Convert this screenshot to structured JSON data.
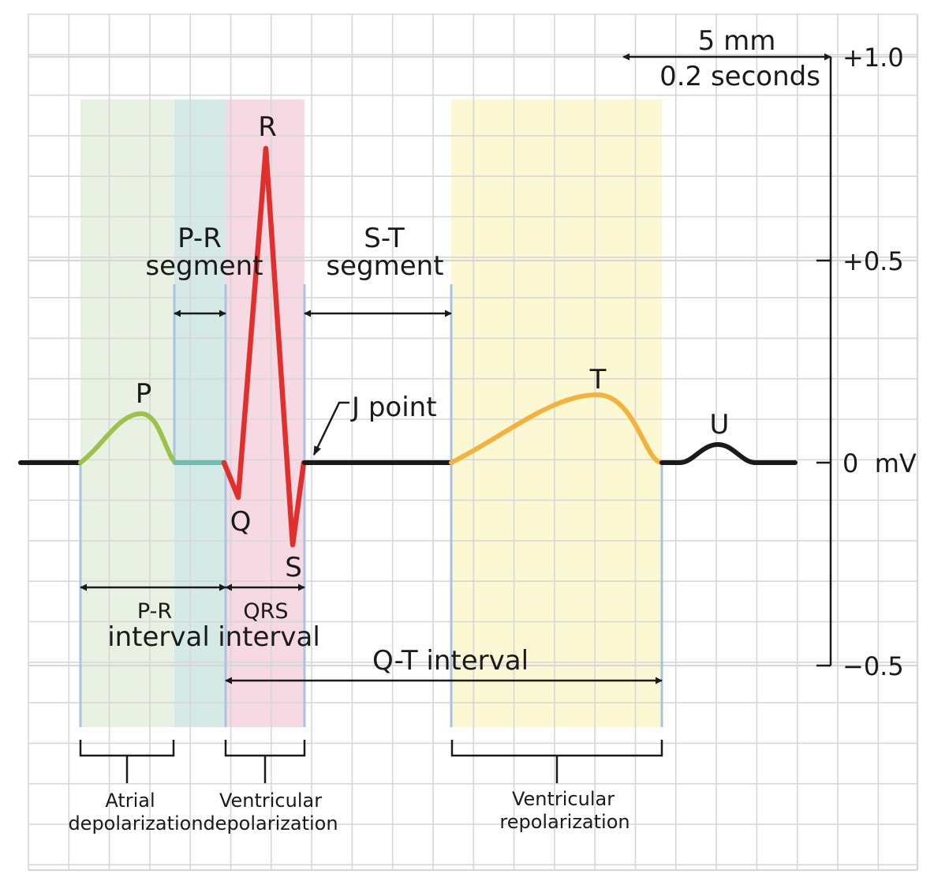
{
  "scale": {
    "span_mm": "5 mm",
    "span_time": "0.2 seconds",
    "ticks": [
      "+1.0",
      "+0.5",
      "0  mV",
      "−0.5"
    ]
  },
  "waves": {
    "p": "P",
    "q": "Q",
    "r": "R",
    "s": "S",
    "t": "T",
    "u": "U"
  },
  "segments": {
    "pr_segment": [
      "P-R",
      "segment"
    ],
    "st_segment": [
      "S-T",
      "segment"
    ],
    "j_point": "J point"
  },
  "intervals": {
    "pr_interval": [
      "P-R",
      "interval"
    ],
    "qrs_interval": [
      "QRS",
      "interval"
    ],
    "qt_interval": "Q-T interval"
  },
  "phases": {
    "atrial": [
      "Atrial",
      "depolarization"
    ],
    "ventricular_depol": [
      "Ventricular",
      "depolarization"
    ],
    "ventricular_repol": [
      "Ventricular",
      "repolarization"
    ]
  },
  "colors": {
    "atrial_band": "#e8f1e2",
    "pr_segment_band": "#d5e9e6",
    "qrs_band": "#f6d9e3",
    "repol_band": "#fcf8d3",
    "p_wave": "#9bc34a",
    "pr_segment_line": "#6bbfae",
    "qrs_wave": "#e1302b",
    "t_wave": "#f3b23d",
    "baseline": "#1a1a1a",
    "grid": "#d7d7d7",
    "marker_line": "#a9c4e2"
  }
}
